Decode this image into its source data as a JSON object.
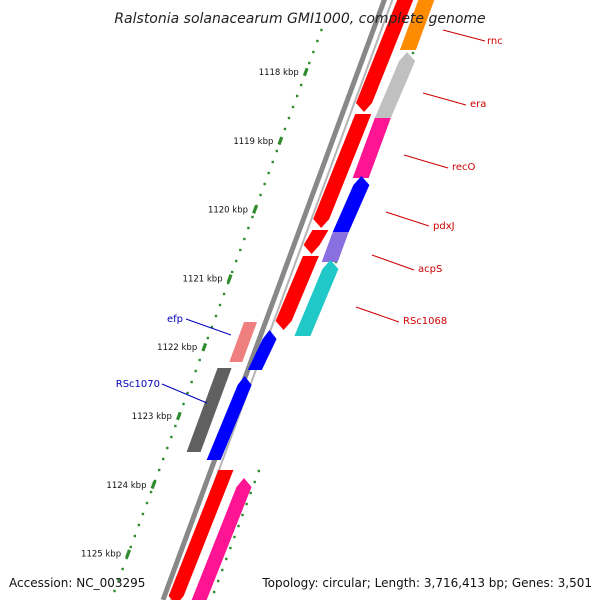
{
  "title": "Ralstonia solanacearum GMI1000, complete genome",
  "footer": {
    "accession": "Accession: NC_003295",
    "info": "Topology: circular; Length: 3,716,413 bp; Genes: 3,501"
  },
  "ticks": [
    {
      "label": "1118 kbp",
      "kbp": 1118
    },
    {
      "label": "1119 kbp",
      "kbp": 1119
    },
    {
      "label": "1120 kbp",
      "kbp": 1120
    },
    {
      "label": "1121 kbp",
      "kbp": 1121
    },
    {
      "label": "1122 kbp",
      "kbp": 1122
    },
    {
      "label": "1123 kbp",
      "kbp": 1123
    },
    {
      "label": "1124 kbp",
      "kbp": 1124
    },
    {
      "label": "1125 kbp",
      "kbp": 1125
    }
  ],
  "gene_labels": [
    {
      "name": "rnc",
      "color": "#cc0000"
    },
    {
      "name": "era",
      "color": "#cc0000"
    },
    {
      "name": "recO",
      "color": "#cc0000"
    },
    {
      "name": "pdxJ",
      "color": "#cc0000"
    },
    {
      "name": "acpS",
      "color": "#cc0000"
    },
    {
      "name": "RSc1068",
      "color": "#cc0000"
    },
    {
      "name": "efp",
      "color": "#0000bb"
    },
    {
      "name": "RSc1070",
      "color": "#0000bb"
    }
  ],
  "colors": {
    "backbone": "#888888",
    "tick": "#2e8b2e",
    "red_feature": "#ff0000",
    "blue_feature": "#0000ff",
    "orange": "#ff8c00",
    "gray_light": "#c0c0c0",
    "magenta": "#ff1493",
    "lavender": "#8a6fe0",
    "cyan": "#20c8c8",
    "pink": "#f08080",
    "dark_gray": "#606060"
  }
}
